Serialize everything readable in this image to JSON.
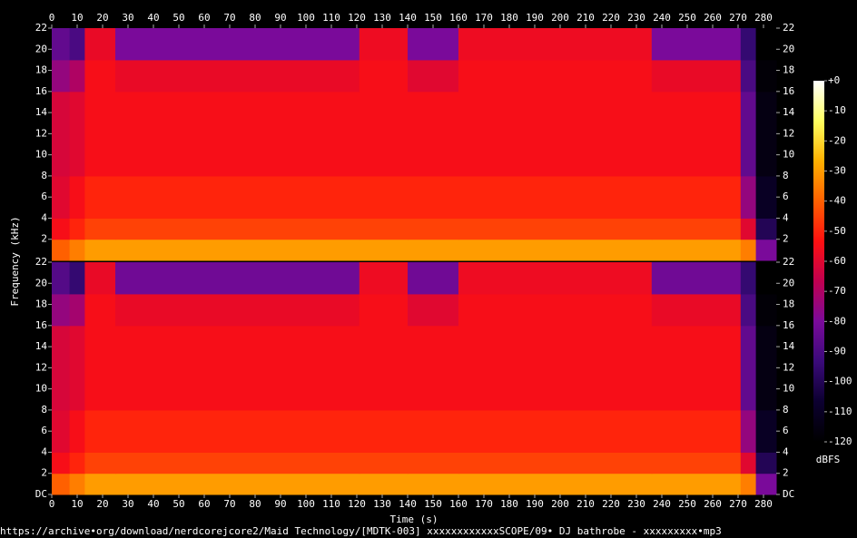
{
  "chart_data": {
    "type": "spectrogram",
    "x_label": "Time (s)",
    "y_label": "Frequency (kHz)",
    "footer": "https://archive•org/download/nerdcorejcore2/Maid Technology/[MDTK-003] xxxxxxxxxxxxSCOPE/09• DJ bathrobe - xxxxxxxxx•mp3",
    "xlim": [
      0,
      285
    ],
    "xticks": [
      0,
      10,
      20,
      30,
      40,
      50,
      60,
      70,
      80,
      90,
      100,
      110,
      120,
      130,
      140,
      150,
      160,
      170,
      180,
      190,
      200,
      210,
      220,
      230,
      240,
      250,
      260,
      270,
      280
    ],
    "ylim": [
      0,
      22
    ],
    "time_edges": [
      0,
      7,
      13,
      25,
      121,
      140,
      160,
      236,
      271,
      277,
      285
    ],
    "freq_edges": [
      0,
      2,
      4,
      8,
      16,
      19,
      22
    ],
    "colorbar_label": "dBFS",
    "clim": [
      -120,
      0
    ],
    "colorbar_ticks": [
      {
        "value": 0,
        "label": "+0"
      },
      -10,
      -20,
      -30,
      -40,
      -50,
      -60,
      -70,
      -80,
      -90,
      -100,
      -110,
      -120
    ],
    "colormap": [
      "#000000",
      "#0c0030",
      "#3a0a7a",
      "#7a0a9a",
      "#c00050",
      "#ff1010",
      "#ff6000",
      "#ffb000",
      "#ffff60",
      "#ffffff"
    ],
    "channels": [
      {
        "yticks": [
          2,
          4,
          6,
          8,
          10,
          12,
          14,
          16,
          18,
          20,
          22
        ],
        "values": [
          [
            -40,
            -35,
            -30,
            -30,
            -30,
            -30,
            -30,
            -30,
            -35,
            -80
          ],
          [
            -55,
            -50,
            -45,
            -45,
            -45,
            -45,
            -45,
            -45,
            -60,
            -100
          ],
          [
            -60,
            -55,
            -50,
            -50,
            -50,
            -50,
            -50,
            -50,
            -75,
            -110
          ],
          [
            -62,
            -60,
            -55,
            -55,
            -55,
            -55,
            -55,
            -55,
            -85,
            -115
          ],
          [
            -75,
            -70,
            -55,
            -58,
            -55,
            -60,
            -55,
            -58,
            -90,
            -118
          ],
          [
            -85,
            -90,
            -58,
            -80,
            -57,
            -80,
            -57,
            -80,
            -95,
            -120
          ]
        ]
      },
      {
        "yticks": [
          {
            "value": 0,
            "label": "DC"
          },
          2,
          4,
          6,
          8,
          10,
          12,
          14,
          16,
          18,
          20,
          22
        ],
        "values": [
          [
            -40,
            -35,
            -30,
            -30,
            -30,
            -30,
            -30,
            -30,
            -35,
            -80
          ],
          [
            -55,
            -50,
            -45,
            -45,
            -45,
            -45,
            -45,
            -45,
            -60,
            -100
          ],
          [
            -60,
            -55,
            -50,
            -50,
            -50,
            -50,
            -50,
            -50,
            -75,
            -110
          ],
          [
            -62,
            -60,
            -55,
            -55,
            -55,
            -55,
            -55,
            -55,
            -85,
            -115
          ],
          [
            -75,
            -72,
            -55,
            -58,
            -55,
            -60,
            -55,
            -58,
            -90,
            -118
          ],
          [
            -88,
            -95,
            -58,
            -82,
            -57,
            -82,
            -57,
            -82,
            -95,
            -120
          ]
        ]
      }
    ]
  }
}
